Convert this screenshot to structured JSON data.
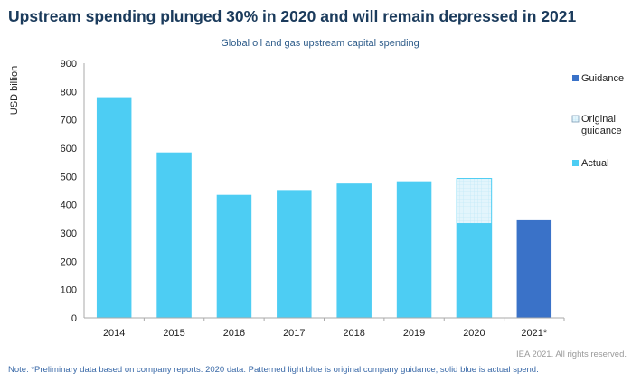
{
  "headline": "Upstream spending plunged 30% in 2020 and will remain depressed in 2021",
  "source": "IEA 2021. All rights reserved.",
  "note": "Note: *Preliminary data based on company reports. 2020 data: Patterned light blue is original company guidance; solid blue is actual spend.",
  "colors": {
    "actual": "#4dcdf3",
    "guidance": "#3a72c8",
    "original_guidance_fill": "#e3f5fc",
    "original_guidance_border": "#4dcdf3",
    "axis": "#aaaaaa",
    "grid": "#d9d9d9"
  },
  "chart_data": {
    "type": "bar",
    "title": "Global oil and gas upstream capital spending",
    "ylabel": "USD billion",
    "xlabel": "",
    "ylim": [
      0,
      900
    ],
    "yticks": [
      0,
      100,
      200,
      300,
      400,
      500,
      600,
      700,
      800,
      900
    ],
    "grid": false,
    "legend_position": "right",
    "categories": [
      "2014",
      "2015",
      "2016",
      "2017",
      "2018",
      "2019",
      "2020",
      "2021*"
    ],
    "series": [
      {
        "name": "Actual",
        "values": [
          780,
          585,
          435,
          452,
          475,
          483,
          335,
          null
        ]
      },
      {
        "name": "Original guidance",
        "values": [
          null,
          null,
          null,
          null,
          null,
          null,
          493,
          null
        ]
      },
      {
        "name": "Guidance",
        "values": [
          null,
          null,
          null,
          null,
          null,
          null,
          null,
          345
        ]
      }
    ],
    "legend": [
      "Guidance",
      "Original guidance",
      "Actual"
    ]
  }
}
